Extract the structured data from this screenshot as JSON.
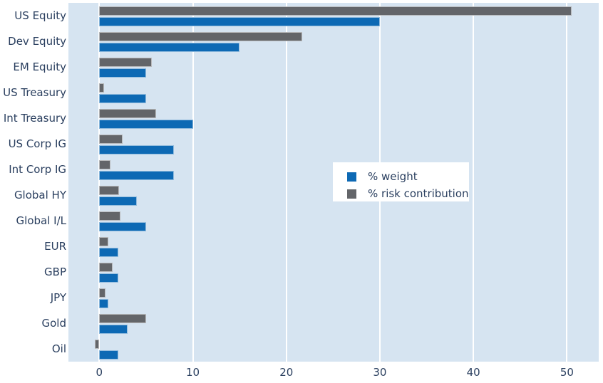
{
  "chart_data": {
    "type": "bar",
    "orientation": "horizontal",
    "barmode": "group",
    "title": "",
    "xlabel": "",
    "ylabel": "",
    "categories": [
      "US Equity",
      "Dev Equity",
      "EM Equity",
      "US Treasury",
      "Int Treasury",
      "US Corp IG",
      "Int Corp IG",
      "Global HY",
      "Global I/L",
      "EUR",
      "GBP",
      "JPY",
      "Gold",
      "Oil"
    ],
    "series": [
      {
        "name": "% weight",
        "color": "#0d69b4",
        "values": [
          30,
          15,
          5,
          5,
          10,
          8,
          8,
          4,
          5,
          2,
          2,
          1,
          3,
          2
        ]
      },
      {
        "name": "% risk contribution",
        "color": "#636569",
        "values": [
          50.5,
          21.7,
          5.6,
          0.5,
          6.1,
          2.5,
          1.2,
          2.1,
          2.3,
          1.0,
          1.4,
          0.7,
          5.0,
          -0.5
        ]
      }
    ],
    "xticks": [
      0,
      10,
      20,
      30,
      40,
      50
    ],
    "xlim": [
      -3.3,
      53.4
    ],
    "grid": true,
    "legend_position": "center-right-inside",
    "colors": {
      "plot_background": "#d6e4f1",
      "gridline": "#ffffff",
      "text": "#2a3f5f",
      "figure_background": "#ffffff"
    }
  }
}
